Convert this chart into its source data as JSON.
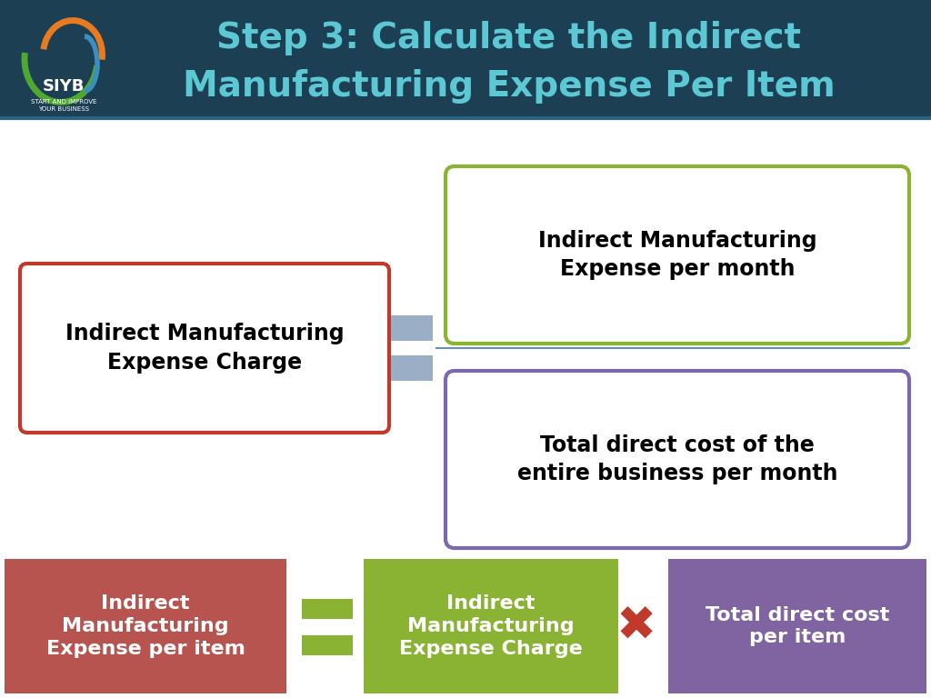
{
  "title_line1": "Step 3: Calculate the Indirect",
  "title_line2": "Manufacturing Expense Per Item",
  "title_color": "#5bc8d4",
  "header_bg": "#1c3f54",
  "header_separator_color": "#2a6080",
  "bg_color": "#ffffff",
  "box1_text": "Indirect Manufacturing\nExpense Charge",
  "box1_border": "#c0392b",
  "box1_bg": "#ffffff",
  "box1_text_color": "#000000",
  "box2_text": "Indirect Manufacturing\nExpense per month",
  "box2_border": "#8ab334",
  "box2_bg": "#ffffff",
  "box2_text_color": "#000000",
  "box3_text": "Total direct cost of the\nentire business per month",
  "box3_border": "#7b68b0",
  "box3_bg": "#ffffff",
  "box3_text_color": "#000000",
  "divider_rect_color": "#9aafc5",
  "divider_line_color": "#6a8faf",
  "bottom_box1_text": "Indirect\nManufacturing\nExpense per item",
  "bottom_box1_bg": "#b85450",
  "bottom_box1_text_color": "#ffffff",
  "bottom_box2_text": "Indirect\nManufacturing\nExpense Charge",
  "bottom_box2_bg": "#8ab334",
  "bottom_box2_text_color": "#ffffff",
  "bottom_box3_text": "Total direct cost\nper item",
  "bottom_box3_bg": "#8064a2",
  "bottom_box3_text_color": "#ffffff",
  "equals_color": "#8ab334",
  "multiply_color": "#c0392b",
  "logo_green": "#4fa830",
  "logo_orange": "#e87a20",
  "logo_blue": "#3a8fc0"
}
